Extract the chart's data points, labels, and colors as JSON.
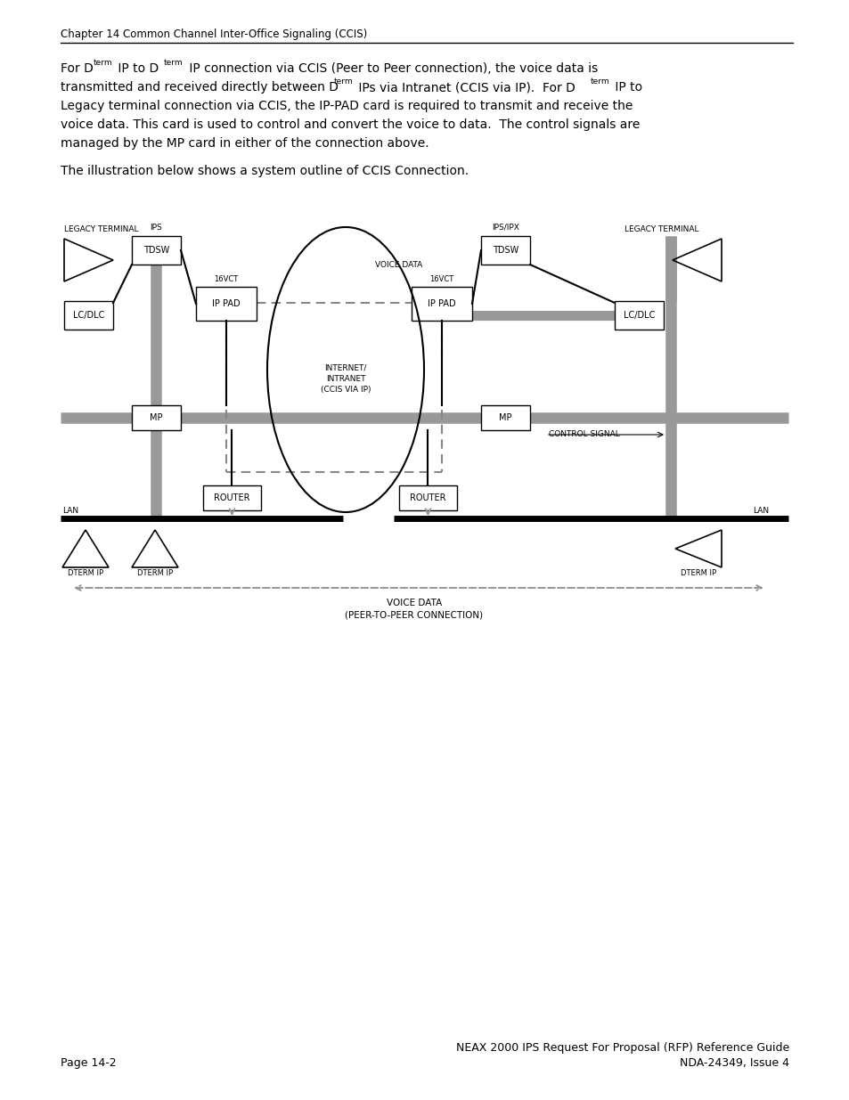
{
  "page_title": "Chapter 14 Common Channel Inter-Office Signaling (CCIS)",
  "footer_left": "Page 14-2",
  "footer_right": "NEAX 2000 IPS Request For Proposal (RFP) Reference Guide\nNDA-24349, Issue 4",
  "bg_color": "#ffffff",
  "text_color": "#000000",
  "body_lines": [
    [
      "For D",
      "term",
      " IP to D",
      "term",
      " IP connection via CCIS (Peer to Peer connection), the voice data is"
    ],
    [
      "transmitted and received directly between D",
      "term",
      " IPs via Intranet (CCIS via IP).  For D",
      "term",
      " IP to"
    ],
    [
      "Legacy terminal connection via CCIS, the IP-PAD card is required to transmit and receive the"
    ],
    [
      "voice data. This card is used to control and convert the voice to data.  The control signals are"
    ],
    [
      "managed by the MP card in either of the connection above."
    ]
  ],
  "intro": "The illustration below shows a system outline of CCIS Connection."
}
